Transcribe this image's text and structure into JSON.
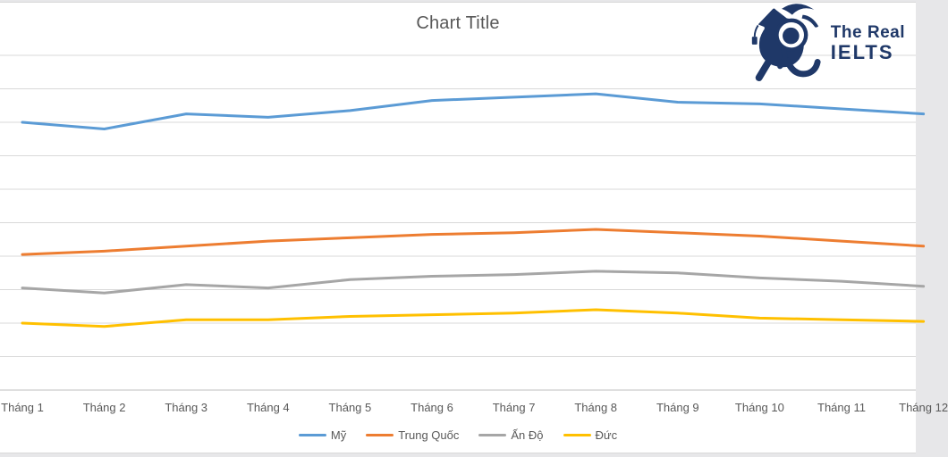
{
  "page": {
    "background": "#e7e7e9",
    "chart_background": "#ffffff"
  },
  "logo": {
    "line1": "The Real",
    "line2": "IELTS",
    "color": "#1f3868",
    "mascot_icon": "graduate-snail-mascot-icon"
  },
  "axis": {
    "gridline_color": "#d9d9d9",
    "axis_line_color": "#bfbfbf",
    "label_color": "#595959"
  },
  "chart_data": {
    "type": "line",
    "title": "Chart Title",
    "categories": [
      "Tháng 1",
      "Tháng 2",
      "Tháng 3",
      "Tháng 4",
      "Tháng 5",
      "Tháng 6",
      "Tháng 7",
      "Tháng 8",
      "Tháng 9",
      "Tháng 10",
      "Tháng 11",
      "Tháng 12"
    ],
    "series": [
      {
        "name": "Mỹ",
        "color": "#5B9BD5",
        "values": [
          80,
          78,
          82.5,
          81.5,
          83.5,
          86.5,
          87.5,
          88.5,
          86,
          85.5,
          84,
          82.5
        ]
      },
      {
        "name": "Trung Quốc",
        "color": "#ED7D31",
        "values": [
          40.5,
          41.5,
          43,
          44.5,
          45.5,
          46.5,
          47,
          48,
          47,
          46,
          44.5,
          43
        ]
      },
      {
        "name": "Ấn Độ",
        "color": "#A6A6A6",
        "values": [
          30.5,
          29,
          31.5,
          30.5,
          33,
          34,
          34.5,
          35.5,
          35,
          33.5,
          32.5,
          31
        ]
      },
      {
        "name": "Đức",
        "color": "#FFC000",
        "values": [
          20,
          19,
          21,
          21,
          22,
          22.5,
          23,
          24,
          23,
          21.5,
          21,
          20.5
        ]
      }
    ],
    "xlabel": "",
    "ylabel": "",
    "ylim": [
      0,
      116
    ],
    "gridline_step": 10,
    "grid": true,
    "y_tick_labels_visible": false,
    "legend_position": "bottom",
    "note": "y-axis tick labels are cropped out of the screenshot; values estimated from gridlines (one gridline = 10 units)"
  }
}
